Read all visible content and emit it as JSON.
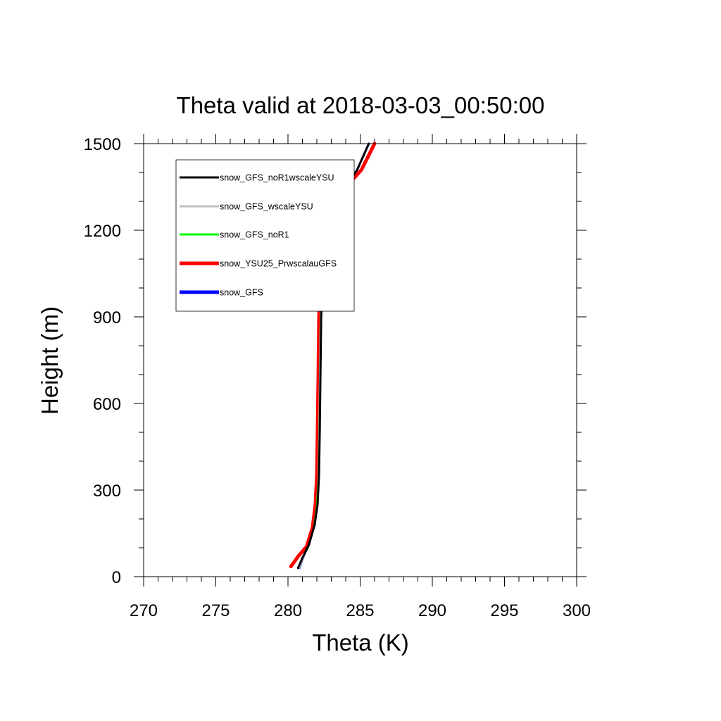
{
  "chart_data": {
    "type": "line",
    "title": "Theta valid at 2018-03-03_00:50:00",
    "xlabel": "Theta (K)",
    "ylabel": "Height (m)",
    "xlim": [
      270,
      300
    ],
    "ylim": [
      0,
      1500
    ],
    "x_ticks": [
      270,
      275,
      280,
      285,
      290,
      295,
      300
    ],
    "y_ticks": [
      0,
      300,
      600,
      900,
      1200,
      1500
    ],
    "x_minor_step": 1,
    "y_minor_step": 100,
    "legend_position": "top-left",
    "series": [
      {
        "name": "snow_GFS",
        "color": "#0000ff",
        "points": [
          [
            280.8,
            30
          ],
          [
            281.0,
            60
          ],
          [
            281.4,
            110
          ],
          [
            281.8,
            180
          ],
          [
            282.0,
            250
          ],
          [
            282.1,
            350
          ],
          [
            282.15,
            500
          ],
          [
            282.2,
            700
          ],
          [
            282.25,
            900
          ],
          [
            282.4,
            1100
          ],
          [
            282.9,
            1200
          ],
          [
            283.4,
            1300
          ],
          [
            284.0,
            1350
          ],
          [
            284.8,
            1410
          ],
          [
            285.6,
            1500
          ]
        ]
      },
      {
        "name": "snow_YSU25_PrwscalauGFS",
        "color": "#ff0000",
        "points": [
          [
            280.2,
            35
          ],
          [
            280.7,
            70
          ],
          [
            281.3,
            105
          ],
          [
            281.7,
            170
          ],
          [
            281.9,
            250
          ],
          [
            282.0,
            350
          ],
          [
            282.05,
            500
          ],
          [
            282.1,
            700
          ],
          [
            282.15,
            900
          ],
          [
            282.3,
            1100
          ],
          [
            282.7,
            1200
          ],
          [
            283.4,
            1300
          ],
          [
            284.2,
            1360
          ],
          [
            285.1,
            1410
          ],
          [
            286.0,
            1500
          ]
        ]
      },
      {
        "name": "snow_GFS_noR1",
        "color": "#00ff00",
        "points": [
          [
            280.7,
            30
          ],
          [
            281.0,
            65
          ],
          [
            281.4,
            100
          ],
          [
            281.8,
            175
          ],
          [
            282.0,
            250
          ],
          [
            282.1,
            350
          ],
          [
            282.15,
            500
          ],
          [
            282.2,
            700
          ],
          [
            282.25,
            900
          ],
          [
            282.45,
            1100
          ],
          [
            282.9,
            1200
          ],
          [
            283.4,
            1300
          ],
          [
            284.0,
            1350
          ],
          [
            284.8,
            1410
          ],
          [
            285.6,
            1500
          ]
        ]
      },
      {
        "name": "snow_GFS_wscaleYSU",
        "color": "#c0c0c0",
        "points": [
          [
            280.8,
            30
          ],
          [
            281.05,
            65
          ],
          [
            281.45,
            110
          ],
          [
            281.85,
            180
          ],
          [
            282.05,
            250
          ],
          [
            282.1,
            350
          ],
          [
            282.15,
            500
          ],
          [
            282.2,
            700
          ],
          [
            282.25,
            900
          ],
          [
            282.45,
            1100
          ],
          [
            282.9,
            1200
          ],
          [
            283.4,
            1300
          ],
          [
            284.0,
            1350
          ],
          [
            284.8,
            1410
          ],
          [
            285.6,
            1500
          ]
        ]
      },
      {
        "name": "snow_GFS_noR1wscaleYSU",
        "color": "#000000",
        "points": [
          [
            280.7,
            30
          ],
          [
            281.0,
            65
          ],
          [
            281.45,
            110
          ],
          [
            281.85,
            180
          ],
          [
            282.05,
            250
          ],
          [
            282.15,
            350
          ],
          [
            282.2,
            500
          ],
          [
            282.25,
            700
          ],
          [
            282.3,
            900
          ],
          [
            282.5,
            1100
          ],
          [
            282.9,
            1200
          ],
          [
            283.4,
            1300
          ],
          [
            284.0,
            1350
          ],
          [
            284.8,
            1410
          ],
          [
            285.6,
            1500
          ]
        ]
      }
    ],
    "legend": [
      {
        "name": "snow_GFS_noR1wscaleYSU",
        "color": "#000000",
        "width": 3
      },
      {
        "name": "snow_GFS_wscaleYSU",
        "color": "#c0c0c0",
        "width": 3
      },
      {
        "name": "snow_GFS_noR1",
        "color": "#00ff00",
        "width": 3
      },
      {
        "name": "snow_YSU25_PrwscalauGFS",
        "color": "#ff0000",
        "width": 5
      },
      {
        "name": "snow_GFS",
        "color": "#0000ff",
        "width": 5
      }
    ]
  }
}
